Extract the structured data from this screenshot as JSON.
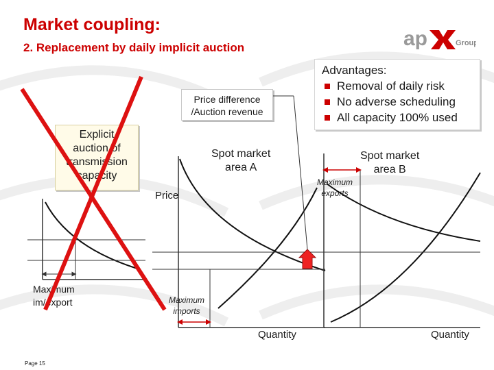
{
  "header": {
    "title": "Market coupling:",
    "subtitle": "2. Replacement by daily implicit auction",
    "logo_text": "apX Group"
  },
  "advantages": {
    "title": "Advantages:",
    "items": [
      "Removal of daily risk",
      "No adverse scheduling",
      "All capacity 100% used"
    ]
  },
  "diagram": {
    "price_difference_label": [
      "Price difference",
      "/Auction revenue"
    ],
    "explicit_auction_label": [
      "Explicit",
      "auction of",
      "transmission",
      "capacity"
    ],
    "spot_a_label": [
      "Spot market",
      "area A"
    ],
    "spot_b_label": [
      "Spot market",
      "area B"
    ],
    "price_label": "Price",
    "max_exports_label": [
      "Maximum",
      "exports"
    ],
    "max_imports_label": [
      "Maximum",
      "imports"
    ],
    "max_imexport_label": [
      "Maximum",
      "im/export"
    ],
    "quantity_a_label": "Quantity",
    "quantity_b_label": "Quantity"
  },
  "footer": {
    "page_label": "Page 15"
  },
  "colors": {
    "accent": "#cc0000",
    "text": "#1a1a1a",
    "line": "#333333"
  }
}
